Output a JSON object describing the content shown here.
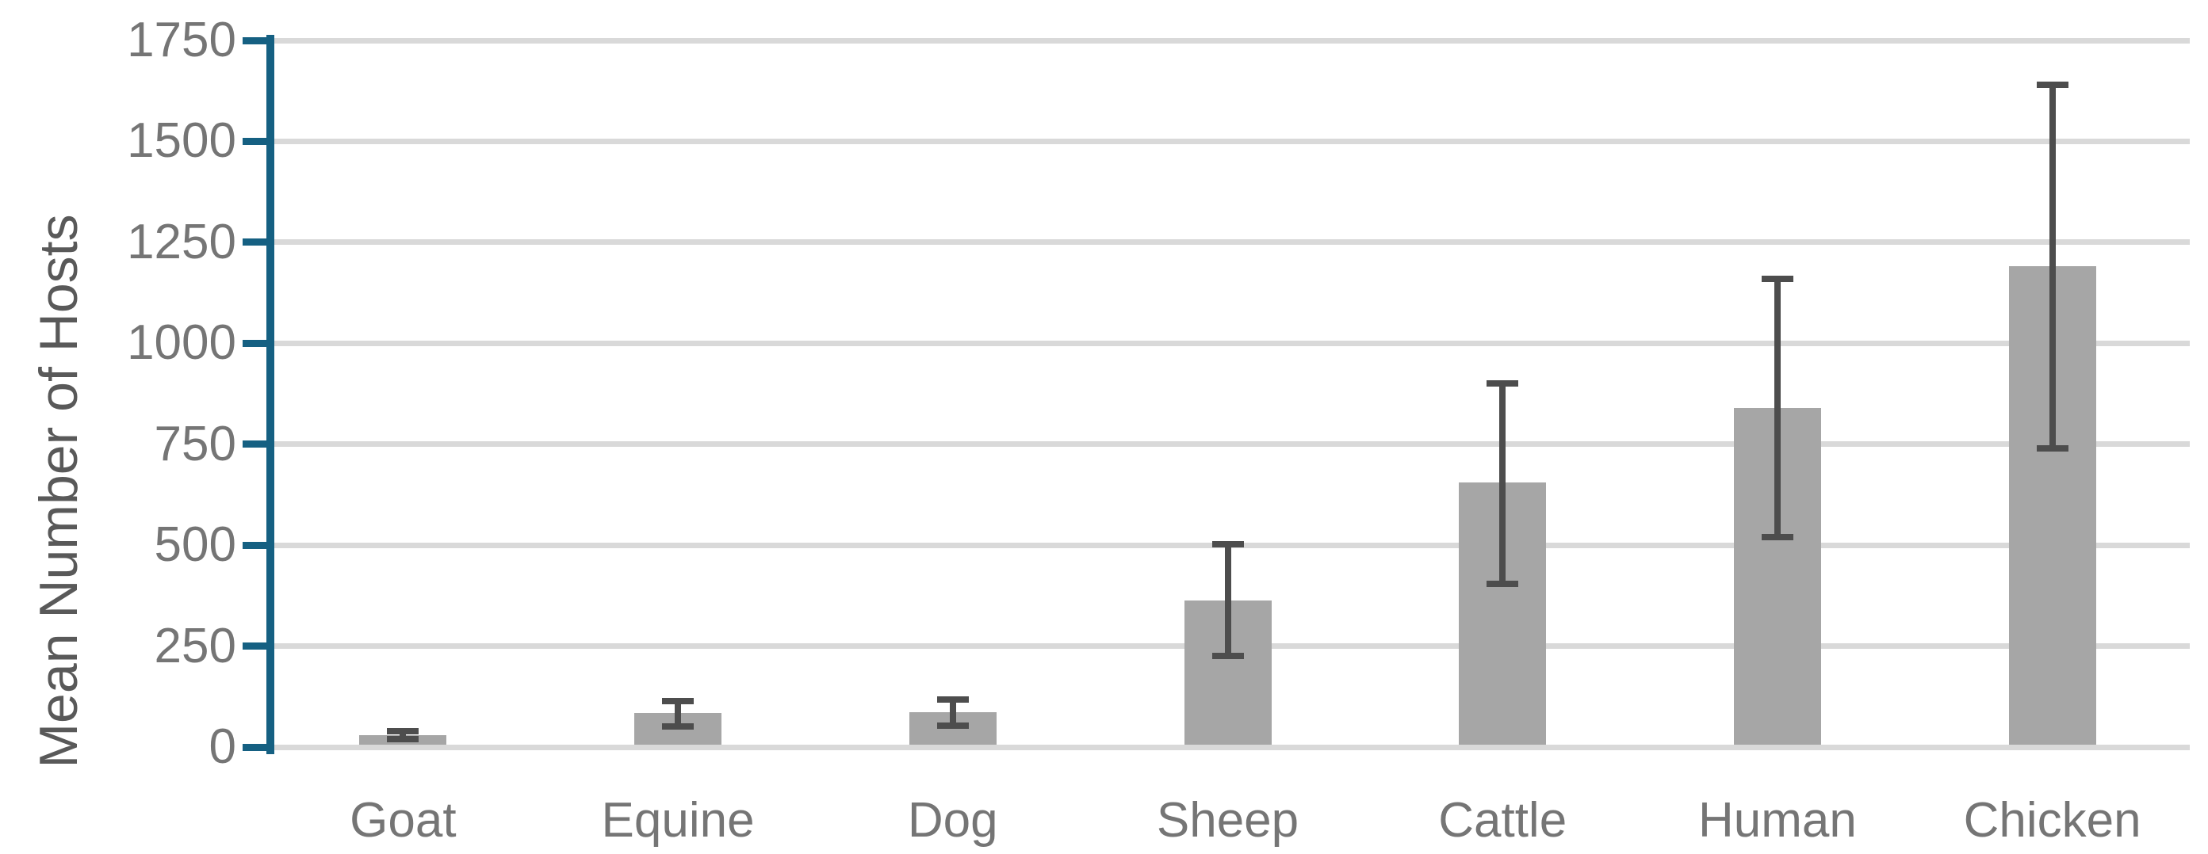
{
  "chart_data": {
    "type": "bar",
    "title": "",
    "xlabel": "",
    "ylabel": "Mean Number of Hosts",
    "categories": [
      "Goat",
      "Equine",
      "Dog",
      "Sheep",
      "Cattle",
      "Human",
      "Chicken"
    ],
    "series": [
      {
        "name": "Mean Number of Hosts",
        "values": [
          30,
          84,
          86,
          363,
          655,
          840,
          1190
        ],
        "error_low": [
          20,
          51,
          53,
          226,
          405,
          520,
          740
        ],
        "error_high": [
          40,
          114,
          118,
          503,
          900,
          1160,
          1640
        ]
      }
    ],
    "ylim": [
      0,
      1750
    ],
    "yticks": [
      0,
      250,
      500,
      750,
      1000,
      1250,
      1500,
      1750
    ],
    "grid": true,
    "legend": false,
    "error_bars": true,
    "colors": {
      "bar_fill": "#A6A6A6",
      "error_bar": "#4D4D4D",
      "gridline": "#D9D9D9",
      "axis_line": "#156082",
      "tick_label": "#757575",
      "category_label": "#757575",
      "axis_title": "#595959",
      "background": "#FFFFFF"
    }
  }
}
